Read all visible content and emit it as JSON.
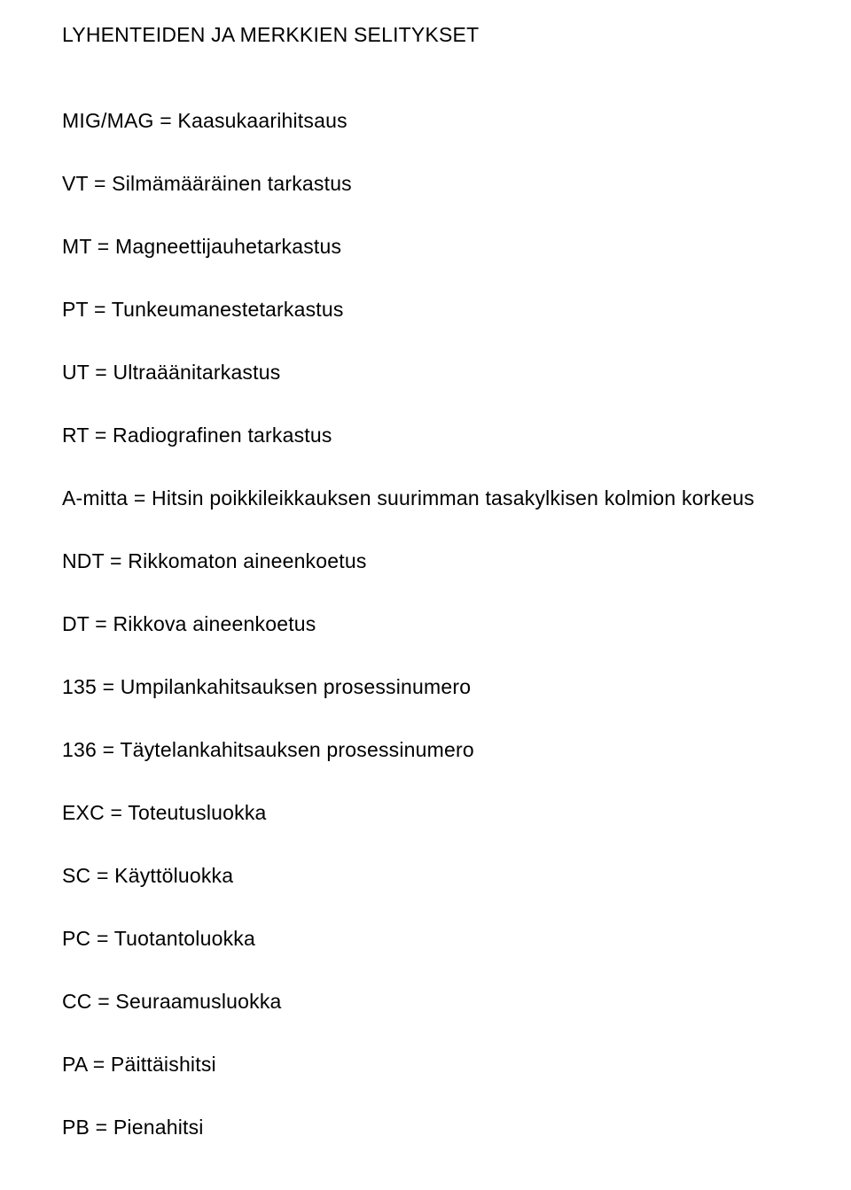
{
  "colors": {
    "background": "#ffffff",
    "text": "#000000"
  },
  "typography": {
    "font_family": "Arial",
    "font_size_pt": 17,
    "heading_weight": 400,
    "body_weight": 400
  },
  "heading": "LYHENTEIDEN JA MERKKIEN SELITYKSET",
  "definitions": [
    "MIG/MAG = Kaasukaarihitsaus",
    "VT = Silmämääräinen tarkastus",
    "MT = Magneettijauhetarkastus",
    "PT = Tunkeumanestetarkastus",
    "UT = Ultraäänitarkastus",
    "RT = Radiografinen tarkastus",
    "A-mitta = Hitsin poikkileikkauksen suurimman tasakylkisen kolmion korkeus",
    "NDT = Rikkomaton aineenkoetus",
    "DT = Rikkova aineenkoetus",
    "135 = Umpilankahitsauksen prosessinumero",
    "136 = Täytelankahitsauksen prosessinumero",
    "EXC = Toteutusluokka",
    "SC = Käyttöluokka",
    "PC = Tuotantoluokka",
    "CC = Seuraamusluokka",
    "PA = Päittäishitsi",
    "PB = Pienahitsi"
  ]
}
